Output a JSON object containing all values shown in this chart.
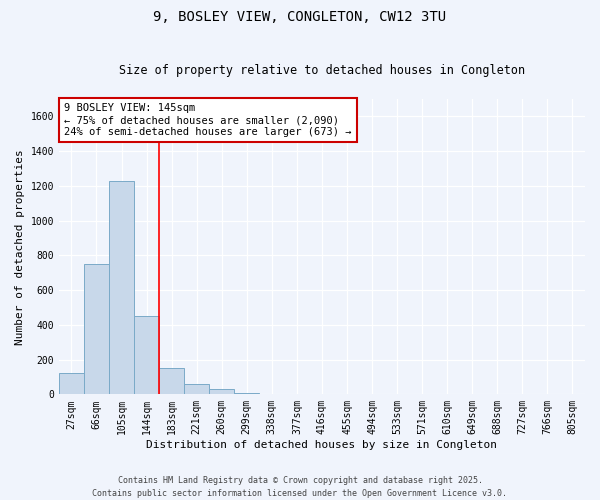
{
  "title": "9, BOSLEY VIEW, CONGLETON, CW12 3TU",
  "subtitle": "Size of property relative to detached houses in Congleton",
  "xlabel": "Distribution of detached houses by size in Congleton",
  "ylabel": "Number of detached properties",
  "bin_labels": [
    "27sqm",
    "66sqm",
    "105sqm",
    "144sqm",
    "183sqm",
    "221sqm",
    "260sqm",
    "299sqm",
    "338sqm",
    "377sqm",
    "416sqm",
    "455sqm",
    "494sqm",
    "533sqm",
    "571sqm",
    "610sqm",
    "649sqm",
    "688sqm",
    "727sqm",
    "766sqm",
    "805sqm"
  ],
  "bar_values": [
    120,
    750,
    1230,
    450,
    150,
    58,
    30,
    10,
    0,
    0,
    0,
    0,
    0,
    0,
    0,
    0,
    0,
    0,
    0,
    0,
    0
  ],
  "bar_color": "#c8d8ea",
  "bar_edge_color": "#7aaac8",
  "background_color": "#f0f4fc",
  "grid_color": "#ffffff",
  "red_line_x": 3.5,
  "annotation_text": "9 BOSLEY VIEW: 145sqm\n← 75% of detached houses are smaller (2,090)\n24% of semi-detached houses are larger (673) →",
  "annotation_box_color": "#ffffff",
  "annotation_box_edge_color": "#cc0000",
  "ylim": [
    0,
    1700
  ],
  "yticks": [
    0,
    200,
    400,
    600,
    800,
    1000,
    1200,
    1400,
    1600
  ],
  "footer_text": "Contains HM Land Registry data © Crown copyright and database right 2025.\nContains public sector information licensed under the Open Government Licence v3.0.",
  "title_fontsize": 10,
  "subtitle_fontsize": 8.5,
  "axis_label_fontsize": 8,
  "tick_fontsize": 7,
  "annotation_fontsize": 7.5,
  "footer_fontsize": 6
}
